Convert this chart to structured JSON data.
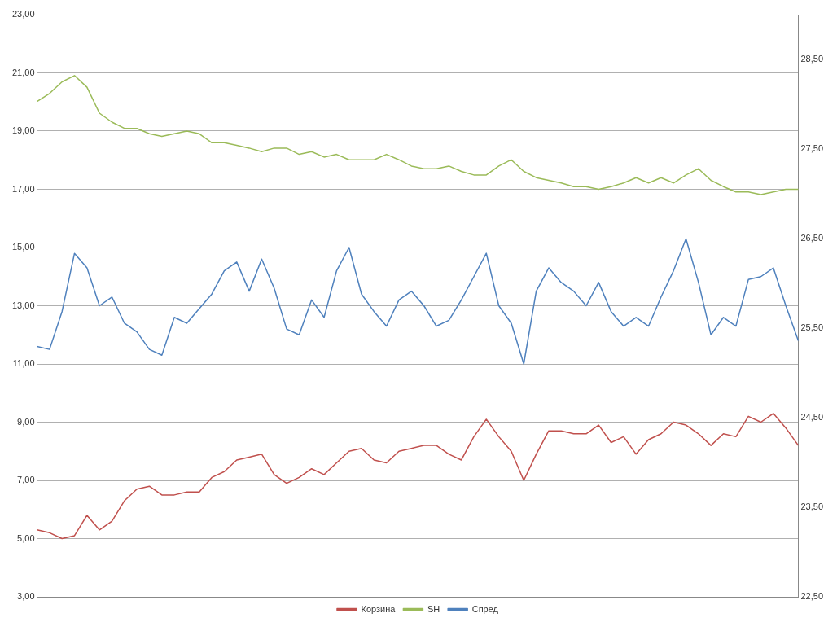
{
  "chart_data": {
    "type": "line",
    "categories": [
      null,
      null,
      null,
      null,
      null,
      null,
      null,
      null,
      null,
      null,
      null,
      null,
      null,
      null,
      null,
      null,
      null,
      null,
      null,
      null,
      null,
      null,
      null,
      null,
      null,
      null,
      null,
      null,
      null,
      null,
      null,
      null,
      null,
      null,
      null,
      null,
      null,
      null,
      null,
      null,
      null,
      null,
      null,
      null,
      null,
      null,
      null,
      null,
      null,
      null,
      null,
      null,
      null,
      null,
      null,
      null,
      null,
      null,
      null,
      null,
      null,
      null
    ],
    "series": [
      {
        "name": "Корзина",
        "color": "#c0504d",
        "values": [
          5.3,
          5.2,
          5.0,
          5.1,
          5.8,
          5.3,
          5.6,
          6.3,
          6.7,
          6.8,
          6.5,
          6.5,
          6.6,
          6.6,
          7.1,
          7.3,
          7.7,
          7.8,
          7.9,
          7.2,
          6.9,
          7.1,
          7.4,
          7.2,
          7.6,
          8.0,
          8.1,
          7.7,
          7.6,
          8.0,
          8.1,
          8.2,
          8.2,
          7.9,
          7.7,
          8.5,
          9.1,
          8.5,
          8.0,
          7.0,
          7.9,
          8.7,
          8.7,
          8.6,
          8.6,
          8.9,
          8.3,
          8.5,
          7.9,
          8.4,
          8.6,
          9.0,
          8.9,
          8.6,
          8.2,
          8.6,
          8.5,
          9.2,
          9.0,
          9.3,
          8.8,
          8.2
        ]
      },
      {
        "name": "SH",
        "color": "#9bbb59",
        "axis": "y2",
        "values": [
          28.03,
          28.12,
          28.25,
          28.32,
          28.19,
          27.9,
          27.8,
          27.73,
          27.73,
          27.67,
          27.64,
          27.67,
          27.7,
          27.67,
          27.57,
          27.57,
          27.54,
          27.51,
          27.47,
          27.51,
          27.51,
          27.44,
          27.47,
          27.41,
          27.44,
          27.38,
          27.38,
          27.38,
          27.44,
          27.38,
          27.31,
          27.28,
          27.28,
          27.31,
          27.25,
          27.21,
          27.21,
          27.31,
          27.38,
          27.25,
          27.18,
          27.15,
          27.12,
          27.08,
          27.08,
          27.05,
          27.08,
          27.12,
          27.18,
          27.12,
          27.18,
          27.12,
          27.21,
          27.28,
          27.15,
          27.08,
          27.02,
          27.02,
          26.99,
          27.02,
          27.05,
          27.05
        ]
      },
      {
        "name": "Спред",
        "color": "#4f81bd",
        "values": [
          11.6,
          11.5,
          12.8,
          14.8,
          14.3,
          13.0,
          13.3,
          12.4,
          12.1,
          11.5,
          11.3,
          12.6,
          12.4,
          12.9,
          13.4,
          14.2,
          14.5,
          13.5,
          14.6,
          13.6,
          12.2,
          12.0,
          13.2,
          12.6,
          14.2,
          15.0,
          13.4,
          12.8,
          12.3,
          13.2,
          13.5,
          13.0,
          12.3,
          12.5,
          13.2,
          14.0,
          14.8,
          13.0,
          12.4,
          11.0,
          13.5,
          14.3,
          13.8,
          13.5,
          13.0,
          13.8,
          12.8,
          12.3,
          12.6,
          12.3,
          13.3,
          14.2,
          15.3,
          13.8,
          12.0,
          12.6,
          12.3,
          13.9,
          14.0,
          14.3,
          13.0,
          11.8
        ]
      }
    ],
    "ylim": [
      3,
      23
    ],
    "yticks": [
      {
        "value": 3,
        "label": "3,00"
      },
      {
        "value": 5,
        "label": "5,00"
      },
      {
        "value": 7,
        "label": "7,00"
      },
      {
        "value": 9,
        "label": "9,00"
      },
      {
        "value": 11,
        "label": "11,00"
      },
      {
        "value": 13,
        "label": "13,00"
      },
      {
        "value": 15,
        "label": "15,00"
      },
      {
        "value": 17,
        "label": "17,00"
      },
      {
        "value": 19,
        "label": "19,00"
      },
      {
        "value": 21,
        "label": "21,00"
      },
      {
        "value": 23,
        "label": "23,00"
      }
    ],
    "y2lim": [
      22.5,
      29
    ],
    "y2ticks": [
      {
        "value": 22.5,
        "label": "22,50"
      },
      {
        "value": 23.5,
        "label": "23,50"
      },
      {
        "value": 24.5,
        "label": "24,50"
      },
      {
        "value": 25.5,
        "label": "25,50"
      },
      {
        "value": 26.5,
        "label": "26,50"
      },
      {
        "value": 27.5,
        "label": "27,50"
      },
      {
        "value": 28.5,
        "label": "28,50"
      }
    ],
    "grid": "y",
    "legend": "bottom",
    "marker": "none"
  }
}
